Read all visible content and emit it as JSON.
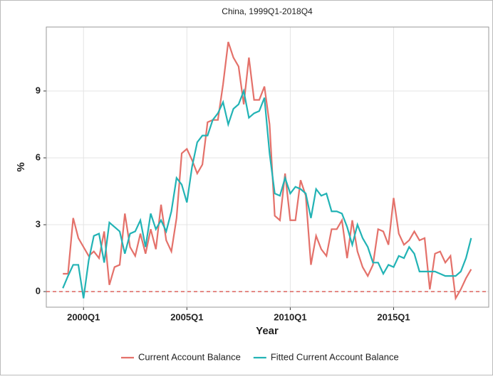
{
  "chart_data": {
    "type": "line",
    "title": "China, 1999Q1-2018Q4",
    "x_label": "Year",
    "y_label": "%",
    "x": [
      1999,
      1999.25,
      1999.5,
      1999.75,
      2000,
      2000.25,
      2000.5,
      2000.75,
      2001,
      2001.25,
      2001.5,
      2001.75,
      2002,
      2002.25,
      2002.5,
      2002.75,
      2003,
      2003.25,
      2003.5,
      2003.75,
      2004,
      2004.25,
      2004.5,
      2004.75,
      2005,
      2005.25,
      2005.5,
      2005.75,
      2006,
      2006.25,
      2006.5,
      2006.75,
      2007,
      2007.25,
      2007.5,
      2007.75,
      2008,
      2008.25,
      2008.5,
      2008.75,
      2009,
      2009.25,
      2009.5,
      2009.75,
      2010,
      2010.25,
      2010.5,
      2010.75,
      2011,
      2011.25,
      2011.5,
      2011.75,
      2012,
      2012.25,
      2012.5,
      2012.75,
      2013,
      2013.25,
      2013.5,
      2013.75,
      2014,
      2014.25,
      2014.5,
      2014.75,
      2015,
      2015.25,
      2015.5,
      2015.75,
      2016,
      2016.25,
      2016.5,
      2016.75,
      2017,
      2017.25,
      2017.5,
      2017.75,
      2018,
      2018.25,
      2018.5,
      2018.75
    ],
    "series": [
      {
        "name": "Current Account Balance",
        "color": "#e4716a",
        "values": [
          0.8,
          0.8,
          3.3,
          2.4,
          2.0,
          1.6,
          1.8,
          1.5,
          2.7,
          0.3,
          1.1,
          1.2,
          3.5,
          2.0,
          1.6,
          2.6,
          1.7,
          2.8,
          1.9,
          3.9,
          2.3,
          1.8,
          3.3,
          6.2,
          6.4,
          5.9,
          5.3,
          5.7,
          7.6,
          7.7,
          7.7,
          9.3,
          11.2,
          10.5,
          10.1,
          8.4,
          10.5,
          8.6,
          8.6,
          9.2,
          7.5,
          3.4,
          3.2,
          5.3,
          3.2,
          3.2,
          5.0,
          4.3,
          1.2,
          2.5,
          1.9,
          1.6,
          2.8,
          2.8,
          3.2,
          1.5,
          3.2,
          1.8,
          1.1,
          0.7,
          1.2,
          2.8,
          2.7,
          2.1,
          4.2,
          2.6,
          2.1,
          2.3,
          2.7,
          2.3,
          2.4,
          0.1,
          1.7,
          1.8,
          1.3,
          1.6,
          -0.3,
          0.1,
          0.6,
          1.0
        ]
      },
      {
        "name": "Fitted Current Account Balance",
        "color": "#22b3b5",
        "values": [
          0.15,
          0.7,
          1.2,
          1.2,
          -0.3,
          1.4,
          2.5,
          2.6,
          1.3,
          3.1,
          2.9,
          2.7,
          1.7,
          2.6,
          2.7,
          3.2,
          2.0,
          3.5,
          2.8,
          3.2,
          2.7,
          3.6,
          5.1,
          4.8,
          4.0,
          5.6,
          6.7,
          7.0,
          7.0,
          7.7,
          8.0,
          8.5,
          7.5,
          8.2,
          8.4,
          9.0,
          7.8,
          8.0,
          8.1,
          8.7,
          6.2,
          4.4,
          4.3,
          5.1,
          4.4,
          4.7,
          4.6,
          4.4,
          3.3,
          4.6,
          4.3,
          4.4,
          3.6,
          3.6,
          3.5,
          2.9,
          2.1,
          3.0,
          2.4,
          2.0,
          1.3,
          1.3,
          0.8,
          1.2,
          1.1,
          1.6,
          1.5,
          2.0,
          1.7,
          0.9,
          0.9,
          0.9,
          0.9,
          0.8,
          0.7,
          0.7,
          0.7,
          0.9,
          1.5,
          2.4
        ]
      }
    ],
    "xlim": [
      1998.2,
      2019.6
    ],
    "xticks": [
      {
        "value": 2000,
        "label": "2000Q1"
      },
      {
        "value": 2005,
        "label": "2005Q1"
      },
      {
        "value": 2010,
        "label": "2010Q1"
      },
      {
        "value": 2015,
        "label": "2015Q1"
      }
    ],
    "ylim": [
      -0.7,
      11.87
    ],
    "yticks": [
      0,
      3,
      6,
      9
    ],
    "hline": 0,
    "hline_color": "#d9534f",
    "grid": true,
    "legend": "bottom"
  }
}
